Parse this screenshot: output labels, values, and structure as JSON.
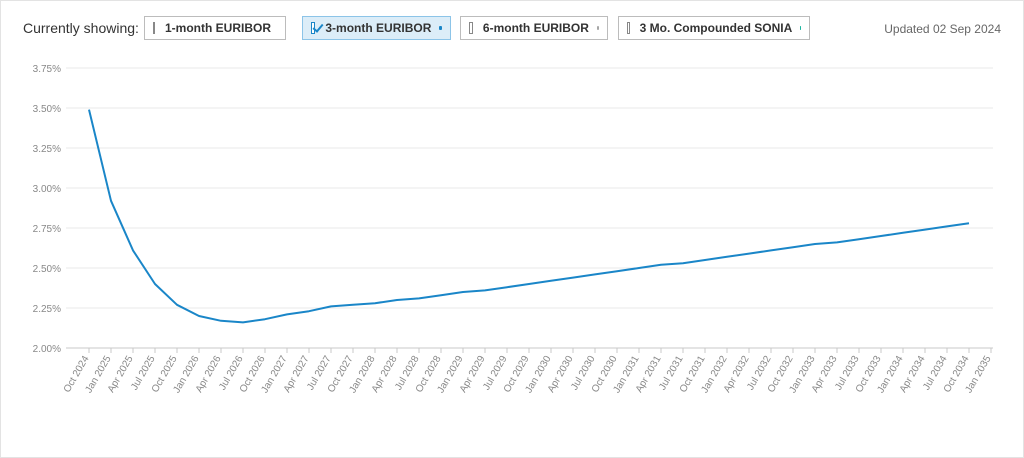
{
  "header": {
    "label": "Currently showing:",
    "updated": "Updated 02 Sep 2024"
  },
  "controls": [
    {
      "label": "1-month EURIBOR",
      "checked": false,
      "color": "#1f3f77"
    },
    {
      "label": "3-month EURIBOR",
      "checked": true,
      "color": "#1a86c8"
    },
    {
      "label": "6-month EURIBOR",
      "checked": false,
      "color": "#a6a6a6"
    },
    {
      "label": "3 Mo. Compounded SONIA",
      "checked": false,
      "color": "#1ab59f"
    }
  ],
  "chart_data": {
    "type": "line",
    "categories": [
      "Oct 2024",
      "Jan 2025",
      "Apr 2025",
      "Jul 2025",
      "Oct 2025",
      "Jan 2026",
      "Apr 2026",
      "Jul 2026",
      "Oct 2026",
      "Jan 2027",
      "Apr 2027",
      "Jul 2027",
      "Oct 2027",
      "Jan 2028",
      "Apr 2028",
      "Jul 2028",
      "Oct 2028",
      "Jan 2029",
      "Apr 2029",
      "Jul 2029",
      "Oct 2029",
      "Jan 2030",
      "Apr 2030",
      "Jul 2030",
      "Oct 2030",
      "Jan 2031",
      "Apr 2031",
      "Jul 2031",
      "Oct 2031",
      "Jan 2032",
      "Apr 2032",
      "Jul 2032",
      "Oct 2032",
      "Jan 2033",
      "Apr 2033",
      "Jul 2033",
      "Oct 2033",
      "Jan 2034",
      "Apr 2034",
      "Jul 2034",
      "Oct 2034",
      "Jan 2035"
    ],
    "series": [
      {
        "name": "3-month EURIBOR",
        "color": "#1a86c8",
        "values": [
          3.49,
          2.92,
          2.61,
          2.4,
          2.27,
          2.2,
          2.17,
          2.16,
          2.18,
          2.21,
          2.23,
          2.26,
          2.27,
          2.28,
          2.3,
          2.31,
          2.33,
          2.35,
          2.36,
          2.38,
          2.4,
          2.42,
          2.44,
          2.46,
          2.48,
          2.5,
          2.52,
          2.53,
          2.55,
          2.57,
          2.59,
          2.61,
          2.63,
          2.65,
          2.66,
          2.68,
          2.7,
          2.72,
          2.74,
          2.76,
          2.78,
          null
        ]
      }
    ],
    "ylim": [
      2.0,
      3.75
    ],
    "yticks": [
      {
        "value": 2.0,
        "label": "2.00%"
      },
      {
        "value": 2.25,
        "label": "2.25%"
      },
      {
        "value": 2.5,
        "label": "2.50%"
      },
      {
        "value": 2.75,
        "label": "2.75%"
      },
      {
        "value": 3.0,
        "label": "3.00%"
      },
      {
        "value": 3.25,
        "label": "3.25%"
      },
      {
        "value": 3.5,
        "label": "3.50%"
      },
      {
        "value": 3.75,
        "label": "3.75%"
      }
    ],
    "grid": true
  }
}
